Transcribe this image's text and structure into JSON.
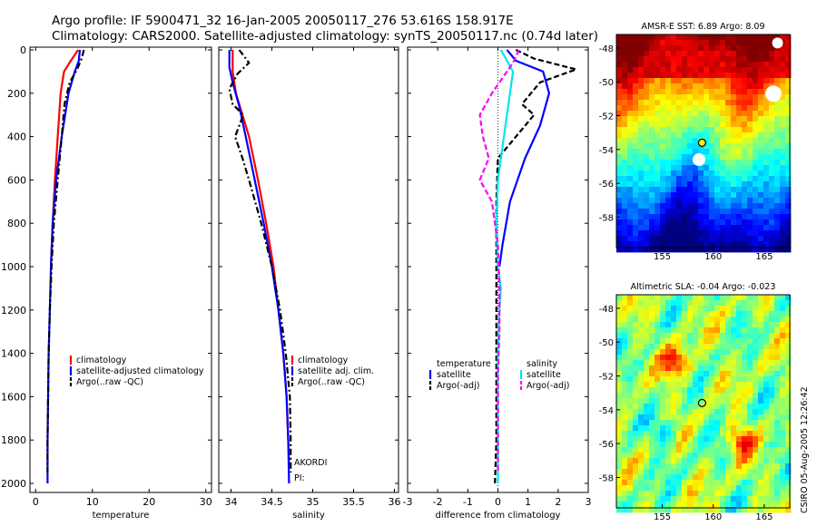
{
  "header": {
    "line1": "Argo profile: IF 5900471_32 16-Jan-2005 20050117_276 53.616S 158.917E",
    "line2": "Climatology: CARS2000. Satellite-adjusted climatology: synTS_20050117.nc (0.74d later)"
  },
  "colors": {
    "climatology": "#ff0000",
    "satellite": "#0000ff",
    "argo": "#000000",
    "sat_diff_salinity": "#00e5ee",
    "argo_diff_salinity": "#ff00ff"
  },
  "chart_data": [
    {
      "type": "line",
      "xlabel": "temperature",
      "ylabel": "",
      "xlim": [
        -1,
        31
      ],
      "ylim": [
        2000,
        0
      ],
      "xticks": [
        0,
        10,
        20,
        30
      ],
      "yticks": [
        0,
        200,
        400,
        600,
        800,
        1000,
        1200,
        1400,
        1600,
        1800,
        2000
      ],
      "series": [
        {
          "name": "climatology",
          "color": "#ff0000",
          "dash": "solid",
          "points": [
            [
              7.5,
              0
            ],
            [
              6.2,
              50
            ],
            [
              5.0,
              100
            ],
            [
              4.4,
              200
            ],
            [
              3.9,
              400
            ],
            [
              3.4,
              600
            ],
            [
              3.0,
              800
            ],
            [
              2.7,
              1000
            ]
          ]
        },
        {
          "name": "satellite-adjusted climatology",
          "color": "#0000ff",
          "dash": "solid",
          "points": [
            [
              7.8,
              0
            ],
            [
              7.6,
              50
            ],
            [
              6.9,
              100
            ],
            [
              5.8,
              200
            ],
            [
              4.6,
              400
            ],
            [
              3.6,
              600
            ],
            [
              3.0,
              800
            ],
            [
              2.7,
              1000
            ],
            [
              2.5,
              1200
            ],
            [
              2.3,
              1400
            ],
            [
              2.2,
              1600
            ],
            [
              2.1,
              1800
            ],
            [
              2.1,
              2000
            ]
          ]
        },
        {
          "name": "Argo(..raw -QC)",
          "color": "#000000",
          "dash": "dashdot",
          "points": [
            [
              8.5,
              0
            ],
            [
              8.1,
              40
            ],
            [
              7.3,
              90
            ],
            [
              6.0,
              150
            ],
            [
              5.1,
              250
            ],
            [
              4.6,
              400
            ],
            [
              3.9,
              600
            ],
            [
              3.2,
              800
            ],
            [
              2.8,
              1000
            ],
            [
              2.5,
              1200
            ],
            [
              2.3,
              1400
            ],
            [
              2.2,
              1600
            ],
            [
              2.1,
              1800
            ],
            [
              2.1,
              1950
            ]
          ]
        }
      ],
      "legend": [
        "climatology",
        "satellite-adjusted climatology",
        "Argo(..raw -QC)"
      ]
    },
    {
      "type": "line",
      "xlabel": "salinity",
      "ylabel": "",
      "xlim": [
        33.85,
        36.05
      ],
      "ylim": [
        2000,
        0
      ],
      "xticks": [
        34,
        34.5,
        35,
        35.5,
        36
      ],
      "xticklabels": [
        "34",
        "34.5",
        "35",
        "35.5",
        "36"
      ],
      "series": [
        {
          "name": "climatology",
          "color": "#ff0000",
          "dash": "solid",
          "points": [
            [
              34.02,
              0
            ],
            [
              34.02,
              100
            ],
            [
              34.06,
              200
            ],
            [
              34.14,
              300
            ],
            [
              34.22,
              400
            ],
            [
              34.33,
              600
            ],
            [
              34.43,
              800
            ],
            [
              34.52,
              1000
            ],
            [
              34.58,
              1200
            ],
            [
              34.64,
              1400
            ],
            [
              34.68,
              1600
            ],
            [
              34.7,
              1800
            ],
            [
              34.71,
              1900
            ]
          ]
        },
        {
          "name": "satellite adj. clim.",
          "color": "#0000ff",
          "dash": "solid",
          "points": [
            [
              33.98,
              0
            ],
            [
              33.98,
              80
            ],
            [
              34.02,
              150
            ],
            [
              34.1,
              260
            ],
            [
              34.18,
              400
            ],
            [
              34.29,
              600
            ],
            [
              34.4,
              800
            ],
            [
              34.5,
              1000
            ],
            [
              34.58,
              1200
            ],
            [
              34.64,
              1400
            ],
            [
              34.68,
              1600
            ],
            [
              34.7,
              1800
            ],
            [
              34.71,
              2000
            ]
          ]
        },
        {
          "name": "Argo(..raw -QC)",
          "color": "#000000",
          "dash": "dashdot",
          "points": [
            [
              34.1,
              0
            ],
            [
              34.22,
              60
            ],
            [
              34.08,
              110
            ],
            [
              33.98,
              180
            ],
            [
              34.02,
              250
            ],
            [
              34.15,
              300
            ],
            [
              34.05,
              400
            ],
            [
              34.14,
              500
            ],
            [
              34.22,
              600
            ],
            [
              34.37,
              800
            ],
            [
              34.5,
              1000
            ],
            [
              34.6,
              1200
            ],
            [
              34.67,
              1400
            ],
            [
              34.72,
              1600
            ],
            [
              34.73,
              1800
            ],
            [
              34.73,
              1950
            ]
          ]
        }
      ],
      "legend": [
        "climatology",
        "satellite adj. clim.",
        "Argo(..raw -QC)"
      ],
      "annotation": {
        "ak": "AKORDI",
        "pi": "PI:"
      }
    },
    {
      "type": "line",
      "xlabel": "difference from climatology",
      "ylabel": "",
      "xlim": [
        -3,
        3
      ],
      "ylim": [
        2000,
        0
      ],
      "xticks": [
        -3,
        -2,
        -1,
        0,
        1,
        2,
        3
      ],
      "series": [
        {
          "name": "temperature satellite",
          "color": "#0000ff",
          "dash": "solid",
          "points": [
            [
              0.3,
              0
            ],
            [
              0.6,
              50
            ],
            [
              1.5,
              100
            ],
            [
              1.7,
              200
            ],
            [
              1.4,
              350
            ],
            [
              0.9,
              500
            ],
            [
              0.4,
              700
            ],
            [
              0.15,
              900
            ],
            [
              0.05,
              1000
            ]
          ]
        },
        {
          "name": "temperature Argo(-adj)",
          "color": "#000000",
          "dash": "dashed",
          "points": [
            [
              0.6,
              0
            ],
            [
              1.2,
              40
            ],
            [
              2.6,
              90
            ],
            [
              1.4,
              150
            ],
            [
              0.8,
              250
            ],
            [
              1.2,
              300
            ],
            [
              0.6,
              400
            ],
            [
              0.0,
              500
            ],
            [
              -0.05,
              700
            ],
            [
              -0.05,
              1000
            ],
            [
              -0.05,
              1200
            ],
            [
              -0.05,
              1500
            ],
            [
              -0.05,
              1800
            ],
            [
              -0.1,
              2000
            ]
          ]
        },
        {
          "name": "salinity satellite",
          "color": "#00e5ee",
          "dash": "solid",
          "points": [
            [
              0.1,
              0
            ],
            [
              0.3,
              50
            ],
            [
              0.5,
              100
            ],
            [
              0.4,
              200
            ],
            [
              0.2,
              400
            ],
            [
              0.0,
              600
            ],
            [
              -0.05,
              800
            ],
            [
              0.0,
              1000
            ],
            [
              0.1,
              1100
            ],
            [
              0.05,
              1200
            ],
            [
              0.0,
              1400
            ],
            [
              0.0,
              1600
            ],
            [
              0.0,
              1800
            ],
            [
              0.0,
              2000
            ]
          ]
        },
        {
          "name": "salinity Argo(-adj)",
          "color": "#ff00ff",
          "dash": "dashed",
          "points": [
            [
              0.7,
              0
            ],
            [
              0.5,
              60
            ],
            [
              -0.2,
              200
            ],
            [
              -0.6,
              300
            ],
            [
              -0.5,
              400
            ],
            [
              -0.3,
              500
            ],
            [
              -0.6,
              600
            ],
            [
              -0.2,
              700
            ],
            [
              0.0,
              900
            ],
            [
              0.05,
              1100
            ],
            [
              0.05,
              1300
            ],
            [
              0.0,
              1500
            ],
            [
              0.0,
              1800
            ],
            [
              0.0,
              1950
            ]
          ]
        }
      ],
      "legend_left": {
        "title": "temperature",
        "items": [
          "satellite",
          "Argo(-adj)"
        ]
      },
      "legend_right": {
        "title": "salinity",
        "items": [
          "satellite",
          "Argo(-adj)"
        ]
      }
    }
  ],
  "maps": [
    {
      "title": "AMSR-E SST: 6.89 Argo: 8.09",
      "kind": "sst",
      "xlim": [
        150.5,
        167.5
      ],
      "ylim": [
        -59.8,
        -47.2
      ],
      "xticks": [
        155,
        160,
        165
      ],
      "yticks": [
        -48,
        -50,
        -52,
        -54,
        -56,
        -58
      ],
      "point": {
        "lon": 158.9,
        "lat": -53.6
      }
    },
    {
      "title": "Altimetric SLA: -0.04 Argo: -0.023",
      "kind": "sla",
      "xlim": [
        150.5,
        167.5
      ],
      "ylim": [
        -59.8,
        -47.2
      ],
      "xticks": [
        155,
        160,
        165
      ],
      "yticks": [
        -48,
        -50,
        -52,
        -54,
        -56,
        -58
      ],
      "point": {
        "lon": 158.9,
        "lat": -53.6
      }
    }
  ],
  "credit": "CSIRO 05-Aug-2005 12:26:42"
}
